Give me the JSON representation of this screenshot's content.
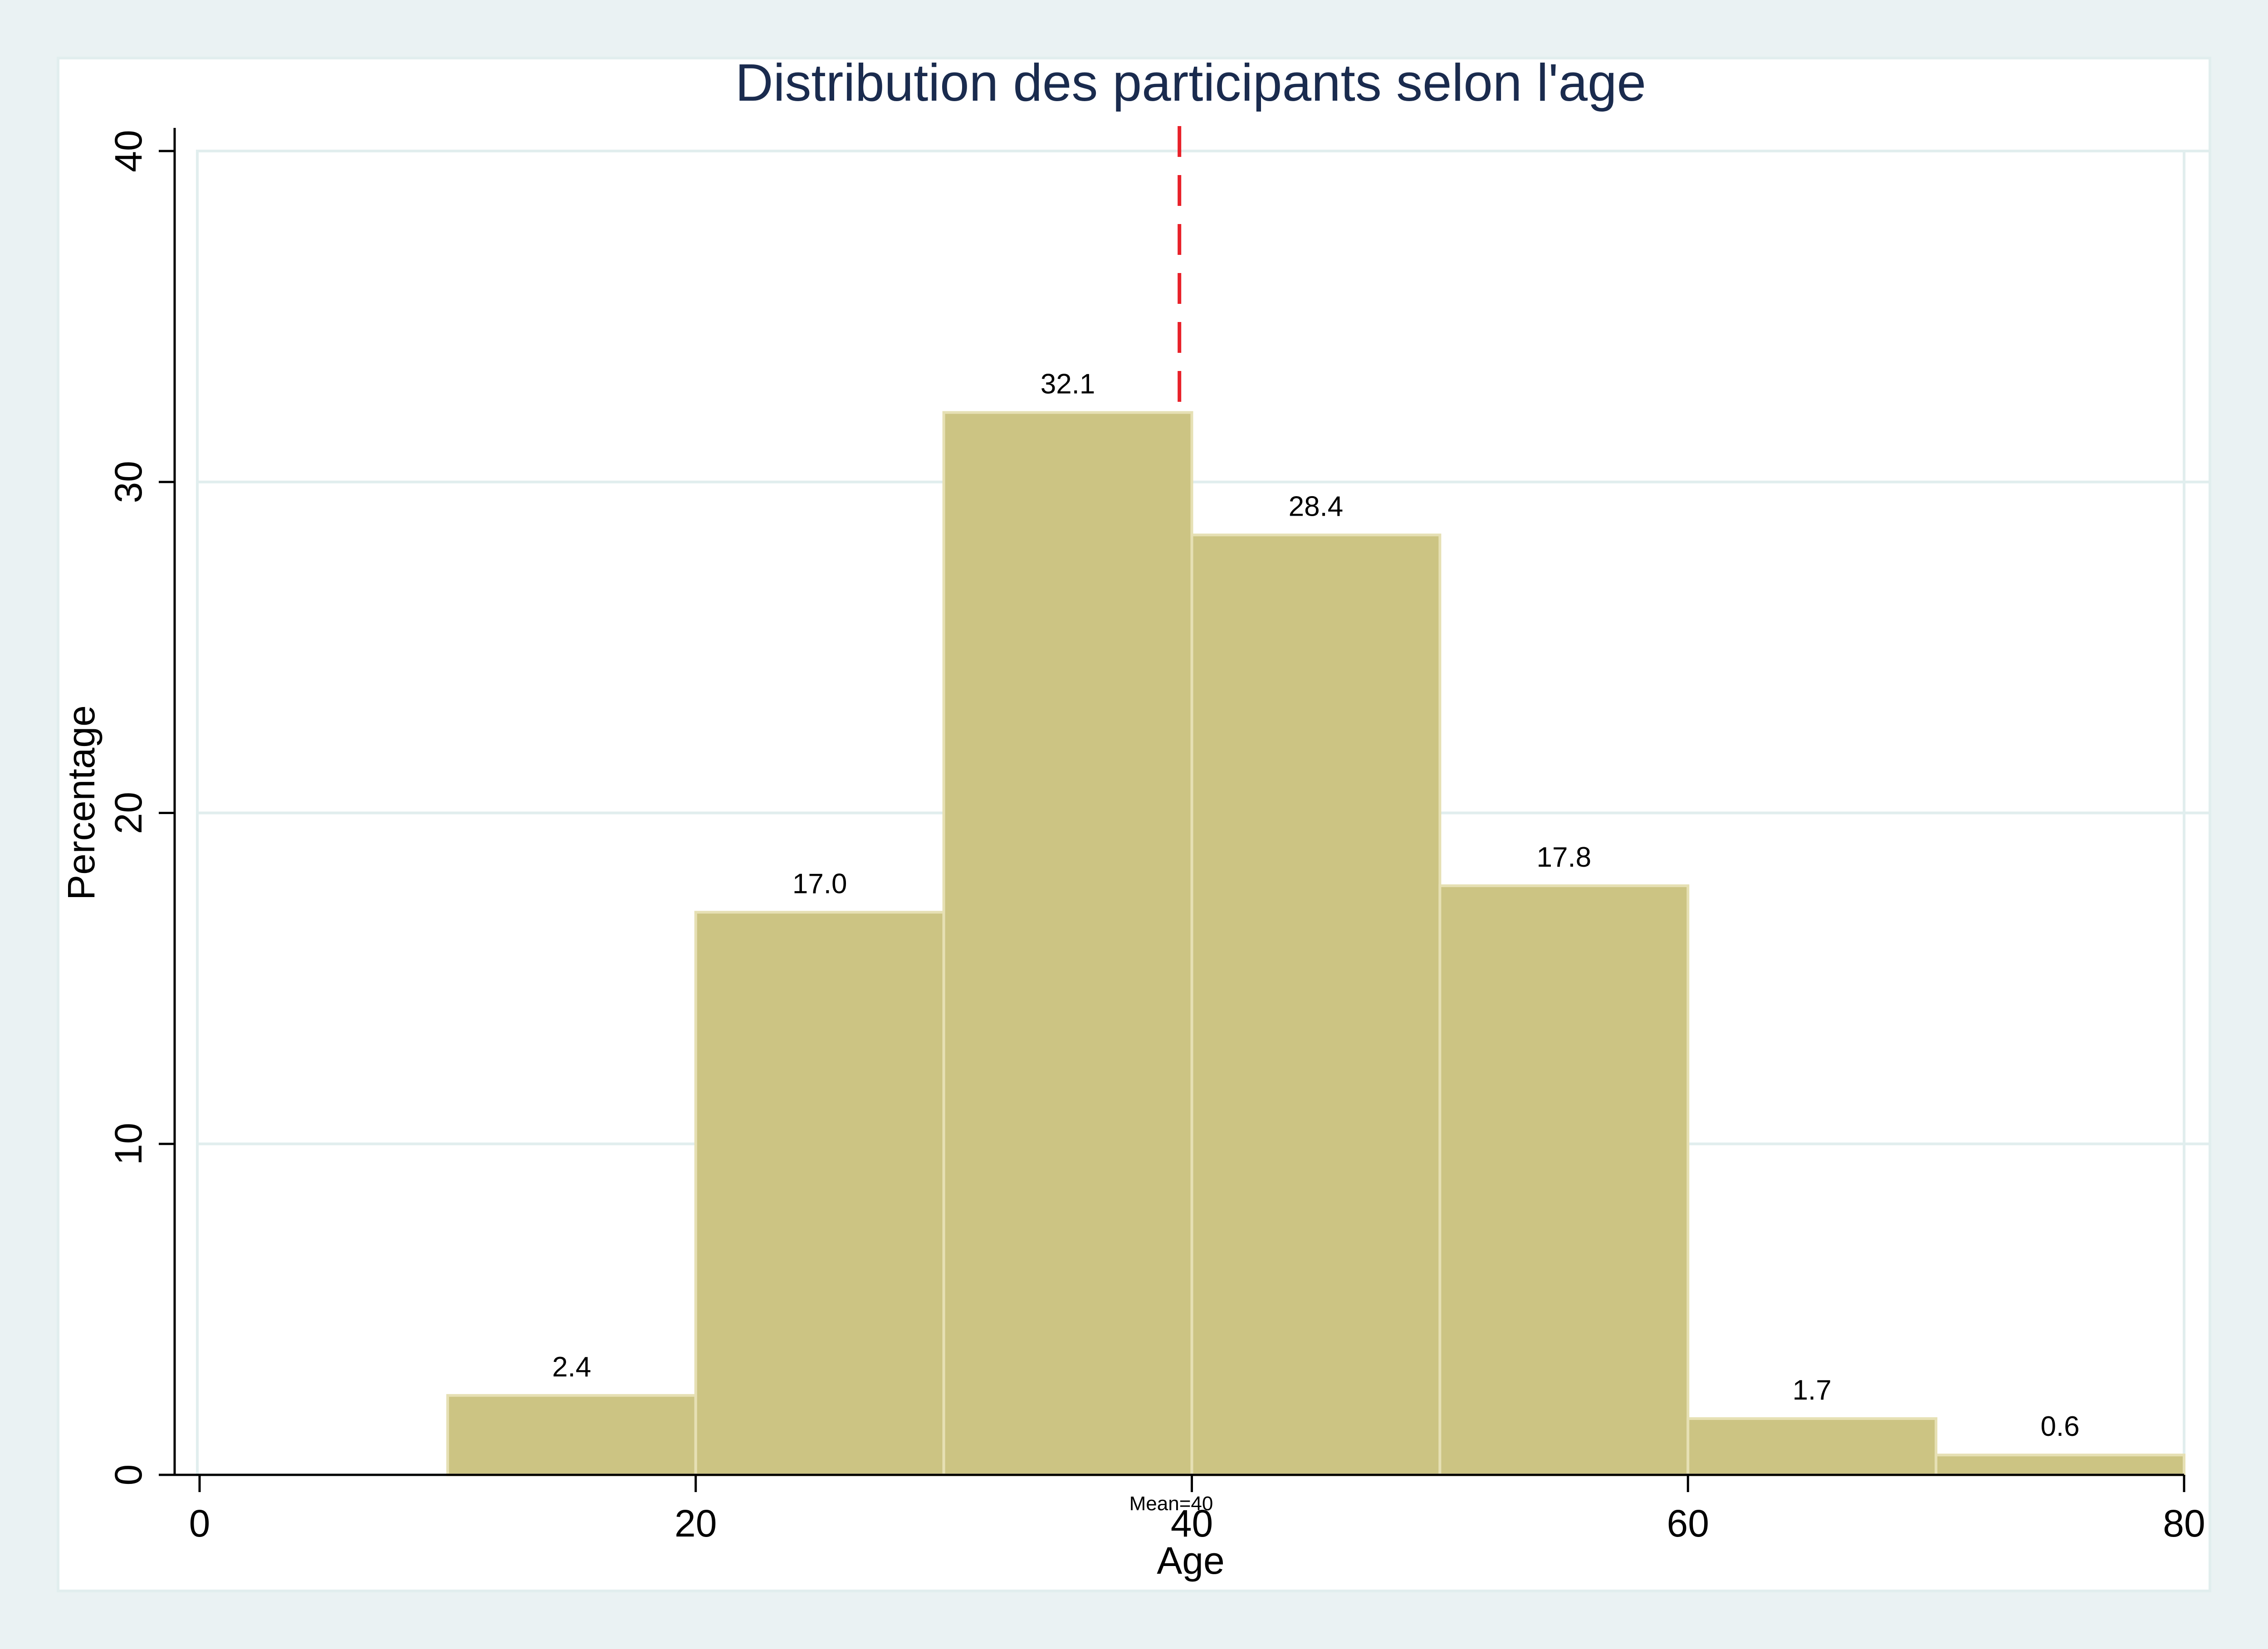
{
  "chart_data": {
    "type": "bar",
    "title": "Distribution des participants selon l'age",
    "xlabel": "Age",
    "ylabel": "Percentage",
    "xlim": [
      0,
      80
    ],
    "ylim": [
      0,
      40
    ],
    "x_ticks": [
      0,
      20,
      40,
      60,
      80
    ],
    "y_ticks": [
      0,
      10,
      20,
      30,
      40
    ],
    "bins": [
      {
        "start": 10,
        "end": 20,
        "value": 2.4,
        "label": "2.4"
      },
      {
        "start": 20,
        "end": 30,
        "value": 17.0,
        "label": "17.0"
      },
      {
        "start": 30,
        "end": 40,
        "value": 32.1,
        "label": "32.1"
      },
      {
        "start": 40,
        "end": 50,
        "value": 28.4,
        "label": "28.4"
      },
      {
        "start": 50,
        "end": 60,
        "value": 17.8,
        "label": "17.8"
      },
      {
        "start": 60,
        "end": 70,
        "value": 1.7,
        "label": "1.7"
      },
      {
        "start": 70,
        "end": 80,
        "value": 0.6,
        "label": "0.6"
      }
    ],
    "mean_line": {
      "x": 39.5,
      "label": "Mean=40",
      "color": "#e8212a",
      "style": "dashed"
    },
    "grid": true,
    "legend": "none",
    "colors": {
      "bar_fill": "#ccc483",
      "bar_edge": "#e6e0b4",
      "grid": "#e1eeee",
      "title": "#1a2b4e",
      "outer_bg": "#eaf2f3"
    }
  }
}
